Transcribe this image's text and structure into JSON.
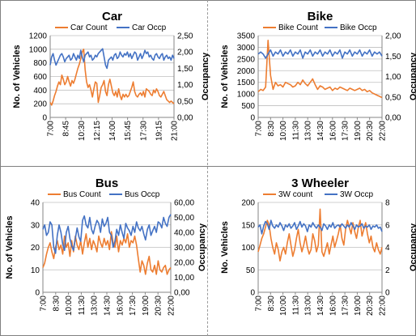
{
  "chart_data": [
    {
      "type": "line",
      "title": "Car",
      "ylabel": "No. of Vehicles",
      "y2label": "Occupancy",
      "legend_position": "top",
      "grid": true,
      "ylim": [
        0,
        1200
      ],
      "yticks": [
        "0",
        "200",
        "400",
        "600",
        "800",
        "1000",
        "1200"
      ],
      "y2lim": [
        0,
        2.5
      ],
      "y2ticks": [
        "0,00",
        "0,50",
        "1,00",
        "1,50",
        "2,00",
        "2,50"
      ],
      "xticks": [
        "7:00",
        "8:45",
        "10:30",
        "12:15",
        "14:00",
        "15:45",
        "17:30",
        "19:15",
        "21:00"
      ],
      "series": [
        {
          "name": "Car Count",
          "axis": "left",
          "color": "#ED7D31",
          "values": [
            220,
            180,
            240,
            320,
            380,
            460,
            520,
            480,
            620,
            560,
            480,
            520,
            600,
            520,
            460,
            540,
            500,
            560,
            640,
            720,
            780,
            860,
            960,
            1000,
            700,
            520,
            440,
            480,
            400,
            300,
            420,
            520,
            500,
            220,
            320,
            440,
            480,
            540,
            380,
            320,
            480,
            560,
            460,
            360,
            320,
            380,
            300,
            420,
            320,
            260,
            340,
            300,
            340,
            300,
            320,
            380,
            440,
            520,
            380,
            320,
            300,
            340,
            360,
            320,
            380,
            300,
            420,
            400,
            380,
            340,
            320,
            400,
            360,
            420,
            380,
            320,
            300,
            340,
            380,
            320,
            260,
            240,
            220,
            240,
            220,
            200
          ]
        },
        {
          "name": "Car Occp",
          "axis": "right",
          "color": "#4472C4",
          "values": [
            1.6,
            1.85,
            1.95,
            1.75,
            1.6,
            1.7,
            1.8,
            1.9,
            1.95,
            1.85,
            1.7,
            1.8,
            1.85,
            1.9,
            1.75,
            1.8,
            1.95,
            1.85,
            1.75,
            1.9,
            1.8,
            2.05,
            1.85,
            1.7,
            1.9,
            1.95,
            2.0,
            1.85,
            1.9,
            1.75,
            1.8,
            1.9,
            1.85,
            1.95,
            2.0,
            2.05,
            2.1,
            1.85,
            1.6,
            1.5,
            1.75,
            1.8,
            1.85,
            1.75,
            1.9,
            1.95,
            1.8,
            1.85,
            2.0,
            1.9,
            1.85,
            1.95,
            1.9,
            2.0,
            1.85,
            1.95,
            1.8,
            1.9,
            2.0,
            1.95,
            1.75,
            1.85,
            1.95,
            1.8,
            1.9,
            2.05,
            1.95,
            2.0,
            1.85,
            1.9,
            1.8,
            1.75,
            1.9,
            1.95,
            1.85,
            1.8,
            1.9,
            1.95,
            1.75,
            1.85,
            1.9,
            1.8,
            1.85,
            1.75,
            1.9,
            1.8
          ]
        }
      ]
    },
    {
      "type": "line",
      "title": "Bike",
      "ylabel": "No. of Vehicles",
      "y2label": "Occupancy",
      "legend_position": "top",
      "grid": true,
      "ylim": [
        0,
        3500
      ],
      "yticks": [
        "0",
        "500",
        "1000",
        "1500",
        "2000",
        "2500",
        "3000",
        "3500"
      ],
      "y2lim": [
        0,
        2.0
      ],
      "y2ticks": [
        "0,00",
        "0,50",
        "1,00",
        "1,50",
        "2,00"
      ],
      "xticks": [
        "7:00",
        "8:30",
        "10:00",
        "11:30",
        "13:00",
        "14:30",
        "16:00",
        "17:30",
        "19:00",
        "20:30",
        "22:00"
      ],
      "series": [
        {
          "name": "Bike Count",
          "axis": "left",
          "color": "#ED7D31",
          "values": [
            1100,
            1200,
            1150,
            1300,
            3300,
            1800,
            1200,
            1500,
            1350,
            1400,
            1300,
            1500,
            1450,
            1400,
            1300,
            1350,
            1500,
            1400,
            1600,
            1450,
            1350,
            1500,
            1650,
            1400,
            1200,
            1350,
            1300,
            1200,
            1250,
            1300,
            1150,
            1250,
            1200,
            1300,
            1250,
            1200,
            1150,
            1250,
            1200,
            1150,
            1200,
            1250,
            1150,
            1200,
            1100,
            1150,
            1050,
            1000,
            950,
            900,
            850
          ]
        },
        {
          "name": "Bike Occp",
          "axis": "right",
          "color": "#4472C4",
          "values": [
            1.55,
            1.6,
            1.55,
            1.45,
            1.55,
            1.65,
            1.5,
            1.6,
            1.55,
            1.65,
            1.5,
            1.6,
            1.55,
            1.65,
            1.5,
            1.6,
            1.55,
            1.65,
            1.45,
            1.6,
            1.55,
            1.65,
            1.5,
            1.6,
            1.55,
            1.65,
            1.5,
            1.6,
            1.55,
            1.65,
            1.5,
            1.6,
            1.55,
            1.65,
            1.45,
            1.6,
            1.55,
            1.65,
            1.5,
            1.6,
            1.55,
            1.65,
            1.5,
            1.6,
            1.55,
            1.65,
            1.5,
            1.6,
            1.55,
            1.6,
            1.5
          ]
        }
      ]
    },
    {
      "type": "line",
      "title": "Bus",
      "ylabel": "No. of Vehicles",
      "y2label": "Occupancy",
      "legend_position": "top",
      "grid": true,
      "ylim": [
        0,
        40
      ],
      "yticks": [
        "0",
        "10",
        "20",
        "30",
        "40"
      ],
      "y2lim": [
        0,
        60
      ],
      "y2ticks": [
        "0,00",
        "10,00",
        "20,00",
        "30,00",
        "40,00",
        "50,00",
        "60,00"
      ],
      "xticks": [
        "7:00",
        "8:30",
        "10:00",
        "11:30",
        "13:00",
        "14:30",
        "16:00",
        "17:30",
        "19:00",
        "20:30",
        "22:00"
      ],
      "series": [
        {
          "name": "Bus Count",
          "axis": "left",
          "color": "#ED7D31",
          "values": [
            11,
            13,
            17,
            20,
            22,
            18,
            15,
            20,
            23,
            19,
            21,
            17,
            25,
            20,
            22,
            16,
            23,
            18,
            25,
            21,
            19,
            23,
            17,
            22,
            26,
            20,
            24,
            19,
            23,
            21,
            18,
            25,
            22,
            20,
            24,
            21,
            23,
            19,
            27,
            22,
            20,
            25,
            18,
            23,
            21,
            24,
            22,
            26,
            20,
            23,
            22,
            25,
            21,
            15,
            9,
            14,
            12,
            8,
            13,
            16,
            10,
            9,
            12,
            8,
            14,
            10,
            9,
            11,
            12,
            8,
            10,
            11
          ]
        },
        {
          "name": "Bus Occp",
          "axis": "right",
          "color": "#4472C4",
          "values": [
            42,
            45,
            38,
            40,
            47,
            45,
            30,
            26,
            38,
            45,
            40,
            32,
            28,
            40,
            44,
            36,
            31,
            28,
            36,
            43,
            37,
            34,
            48,
            51,
            45,
            43,
            50,
            42,
            39,
            44,
            48,
            46,
            40,
            49,
            44,
            46,
            50,
            40,
            38,
            30,
            34,
            42,
            38,
            45,
            40,
            36,
            46,
            43,
            41,
            38,
            44,
            40,
            47,
            43,
            41,
            44,
            39,
            35,
            42,
            45,
            38,
            41,
            44,
            40,
            47,
            46,
            43,
            50,
            46,
            44,
            50,
            52
          ]
        }
      ]
    },
    {
      "type": "line",
      "title": "3 Wheeler",
      "ylabel": "No. Vehicles",
      "y2label": "Occupancy",
      "legend_position": "top",
      "grid": true,
      "ylim": [
        0,
        200
      ],
      "yticks": [
        "0",
        "50",
        "100",
        "150",
        "200"
      ],
      "y2lim": [
        0,
        8
      ],
      "y2ticks": [
        "0",
        "2",
        "4",
        "6",
        "8"
      ],
      "xticks": [
        "7:00",
        "8:30",
        "10:00",
        "11:30",
        "13:00",
        "14:30",
        "16:00",
        "17:30",
        "19:00",
        "20:30",
        "22:00"
      ],
      "series": [
        {
          "name": "3W count",
          "axis": "left",
          "color": "#ED7D31",
          "values": [
            90,
            105,
            120,
            130,
            145,
            160,
            150,
            120,
            100,
            85,
            110,
            95,
            70,
            90,
            100,
            85,
            110,
            130,
            105,
            80,
            95,
            120,
            140,
            110,
            90,
            105,
            125,
            100,
            85,
            95,
            130,
            115,
            90,
            105,
            185,
            90,
            80,
            95,
            110,
            85,
            105,
            125,
            100,
            115,
            130,
            150,
            120,
            105,
            140,
            160,
            145,
            130,
            155,
            135,
            120,
            145,
            160,
            125,
            140,
            155,
            130,
            110,
            125,
            100,
            90,
            110,
            95,
            85,
            100
          ]
        },
        {
          "name": "3W Occp",
          "axis": "right",
          "color": "#4472C4",
          "values": [
            5.8,
            6.0,
            5.2,
            5.9,
            6.3,
            6.1,
            5.6,
            6.4,
            5.9,
            5.7,
            6.0,
            5.8,
            6.2,
            5.9,
            5.5,
            6.0,
            5.8,
            6.1,
            5.7,
            5.9,
            6.2,
            5.6,
            5.9,
            6.3,
            5.8,
            6.1,
            5.9,
            5.4,
            6.0,
            5.8,
            6.2,
            5.9,
            5.7,
            6.0,
            5.8,
            5.5,
            6.1,
            5.9,
            5.6,
            6.0,
            5.8,
            6.2,
            5.7,
            5.9,
            6.0,
            5.8,
            6.1,
            5.9,
            5.7,
            6.0,
            5.8,
            6.2,
            5.9,
            5.6,
            6.0,
            5.8,
            5.9,
            6.1,
            5.7,
            5.9,
            5.8,
            6.0,
            5.6,
            5.9,
            5.8,
            6.0,
            5.7,
            5.8,
            5.4
          ]
        }
      ]
    }
  ]
}
